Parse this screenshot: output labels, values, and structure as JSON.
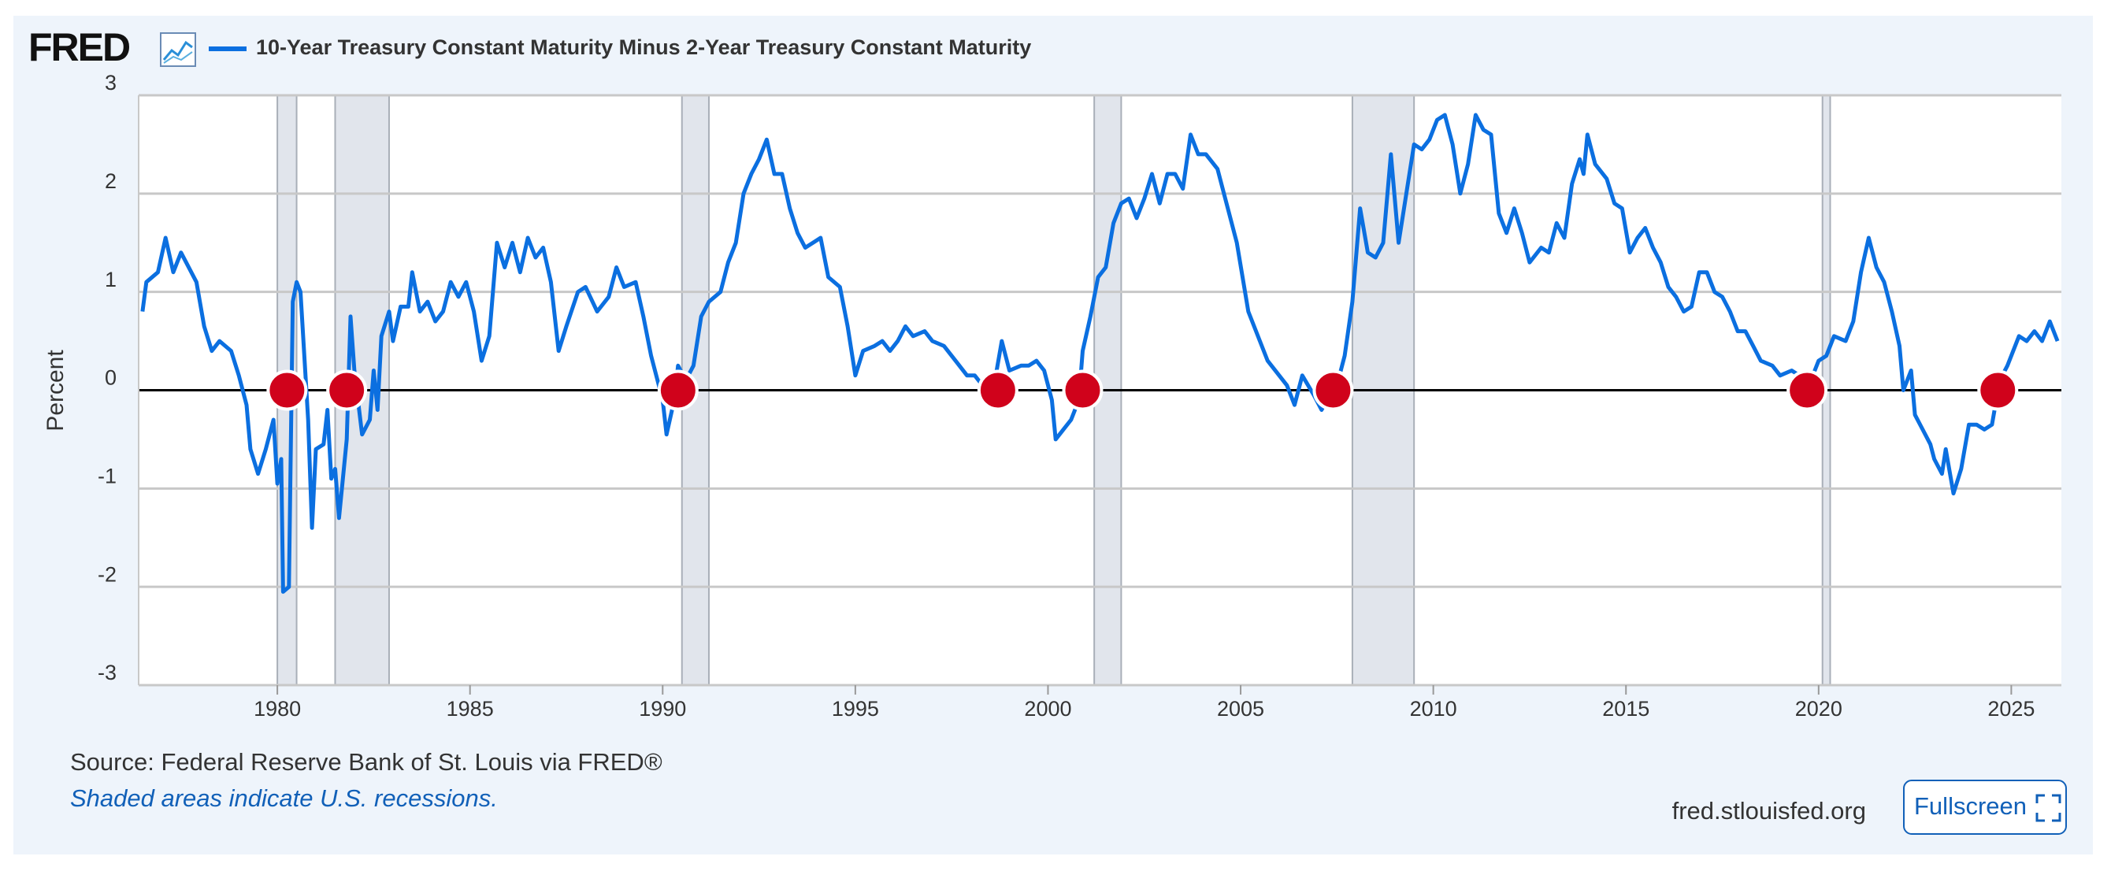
{
  "header": {
    "logo": "FRED"
  },
  "chart_data": {
    "type": "line",
    "title": "10-Year Treasury Constant Maturity Minus 2-Year Treasury Constant Maturity",
    "y_label": "Percent",
    "xlim": [
      1976.4,
      2026.3
    ],
    "ylim": [
      -3,
      3
    ],
    "xticks": [
      1980,
      1985,
      1990,
      1995,
      2000,
      2005,
      2010,
      2015,
      2020,
      2025
    ],
    "yticks": [
      -3,
      -2,
      -1,
      0,
      1,
      2,
      3
    ],
    "grid": true,
    "recessions": [
      [
        1980.0,
        1980.5
      ],
      [
        1981.5,
        1982.9
      ],
      [
        1990.5,
        1991.2
      ],
      [
        2001.2,
        2001.9
      ],
      [
        2007.9,
        2009.5
      ],
      [
        2020.1,
        2020.3
      ]
    ],
    "markers": {
      "x": [
        1980.25,
        1981.8,
        1990.4,
        1998.7,
        2000.9,
        2007.4,
        2019.7,
        2024.65
      ],
      "y": [
        0,
        0,
        0,
        0,
        0,
        0,
        0,
        0
      ],
      "color": "#d0021b"
    },
    "x": [
      1976.5,
      1976.6,
      1976.9,
      1977.1,
      1977.3,
      1977.5,
      1977.9,
      1978.1,
      1978.3,
      1978.5,
      1978.8,
      1979.0,
      1979.2,
      1979.3,
      1979.5,
      1979.7,
      1979.9,
      1980.0,
      1980.1,
      1980.15,
      1980.3,
      1980.4,
      1980.5,
      1980.6,
      1980.8,
      1980.9,
      1981.0,
      1981.2,
      1981.3,
      1981.4,
      1981.5,
      1981.6,
      1981.8,
      1981.9,
      1982.0,
      1982.2,
      1982.4,
      1982.5,
      1982.6,
      1982.7,
      1982.9,
      1983.0,
      1983.2,
      1983.4,
      1983.5,
      1983.7,
      1983.9,
      1984.1,
      1984.3,
      1984.5,
      1984.7,
      1984.9,
      1985.1,
      1985.3,
      1985.5,
      1985.7,
      1985.9,
      1986.1,
      1986.3,
      1986.5,
      1986.7,
      1986.9,
      1987.1,
      1987.3,
      1987.5,
      1987.8,
      1988.0,
      1988.3,
      1988.6,
      1988.8,
      1989.0,
      1989.3,
      1989.5,
      1989.7,
      1990.0,
      1990.1,
      1990.3,
      1990.4,
      1990.6,
      1990.8,
      1991.0,
      1991.2,
      1991.5,
      1991.7,
      1991.9,
      1992.1,
      1992.3,
      1992.5,
      1992.7,
      1992.9,
      1993.1,
      1993.3,
      1993.5,
      1993.7,
      1993.9,
      1994.1,
      1994.3,
      1994.6,
      1994.8,
      1995.0,
      1995.2,
      1995.5,
      1995.7,
      1995.9,
      1996.1,
      1996.3,
      1996.5,
      1996.8,
      1997.0,
      1997.3,
      1997.6,
      1997.9,
      1998.1,
      1998.3,
      1998.6,
      1998.8,
      1999.0,
      1999.3,
      1999.5,
      1999.7,
      1999.9,
      2000.1,
      2000.2,
      2000.4,
      2000.6,
      2000.8,
      2000.9,
      2001.1,
      2001.3,
      2001.5,
      2001.7,
      2001.9,
      2002.1,
      2002.3,
      2002.5,
      2002.7,
      2002.9,
      2003.1,
      2003.3,
      2003.5,
      2003.7,
      2003.9,
      2004.1,
      2004.4,
      2004.6,
      2004.9,
      2005.2,
      2005.5,
      2005.7,
      2006.0,
      2006.2,
      2006.4,
      2006.6,
      2006.9,
      2007.1,
      2007.3,
      2007.5,
      2007.7,
      2007.9,
      2008.1,
      2008.3,
      2008.5,
      2008.7,
      2008.9,
      2009.1,
      2009.3,
      2009.5,
      2009.7,
      2009.9,
      2010.1,
      2010.3,
      2010.5,
      2010.7,
      2010.9,
      2011.1,
      2011.3,
      2011.5,
      2011.7,
      2011.9,
      2012.1,
      2012.3,
      2012.5,
      2012.8,
      2013.0,
      2013.2,
      2013.4,
      2013.6,
      2013.8,
      2013.9,
      2014.0,
      2014.2,
      2014.5,
      2014.7,
      2014.9,
      2015.1,
      2015.3,
      2015.5,
      2015.7,
      2015.9,
      2016.1,
      2016.3,
      2016.5,
      2016.7,
      2016.9,
      2017.1,
      2017.3,
      2017.5,
      2017.7,
      2017.9,
      2018.1,
      2018.3,
      2018.5,
      2018.8,
      2019.0,
      2019.3,
      2019.5,
      2019.7,
      2019.9,
      2020.0,
      2020.2,
      2020.4,
      2020.7,
      2020.9,
      2021.1,
      2021.3,
      2021.5,
      2021.7,
      2021.9,
      2022.1,
      2022.2,
      2022.4,
      2022.5,
      2022.7,
      2022.9,
      2023.0,
      2023.2,
      2023.3,
      2023.5,
      2023.7,
      2023.9,
      2024.1,
      2024.3,
      2024.5,
      2024.7,
      2024.9,
      2025.0,
      2025.2,
      2025.4,
      2025.6,
      2025.8,
      2026.0,
      2026.2
    ],
    "series": [
      {
        "name": "10-Year Treasury Constant Maturity Minus 2-Year Treasury Constant Maturity",
        "color": "#0b6fe0",
        "values": [
          0.8,
          1.1,
          1.2,
          1.55,
          1.2,
          1.4,
          1.1,
          0.65,
          0.4,
          0.5,
          0.4,
          0.15,
          -0.15,
          -0.6,
          -0.85,
          -0.6,
          -0.3,
          -0.95,
          -0.7,
          -2.05,
          -2.0,
          0.9,
          1.1,
          1.0,
          -0.3,
          -1.4,
          -0.6,
          -0.55,
          -0.2,
          -0.9,
          -0.8,
          -1.3,
          -0.5,
          0.75,
          0.2,
          -0.45,
          -0.3,
          0.2,
          -0.2,
          0.55,
          0.8,
          0.5,
          0.85,
          0.85,
          1.2,
          0.8,
          0.9,
          0.7,
          0.8,
          1.1,
          0.95,
          1.1,
          0.8,
          0.3,
          0.55,
          1.5,
          1.25,
          1.5,
          1.2,
          1.55,
          1.35,
          1.45,
          1.1,
          0.4,
          0.65,
          1.0,
          1.05,
          0.8,
          0.95,
          1.25,
          1.05,
          1.1,
          0.75,
          0.35,
          -0.1,
          -0.45,
          -0.1,
          0.25,
          0.1,
          0.25,
          0.75,
          0.9,
          1.0,
          1.3,
          1.5,
          2.0,
          2.2,
          2.35,
          2.55,
          2.2,
          2.2,
          1.85,
          1.6,
          1.45,
          1.5,
          1.55,
          1.15,
          1.05,
          0.65,
          0.15,
          0.4,
          0.45,
          0.5,
          0.4,
          0.5,
          0.65,
          0.55,
          0.6,
          0.5,
          0.45,
          0.3,
          0.15,
          0.15,
          0.05,
          0.05,
          0.5,
          0.2,
          0.25,
          0.25,
          0.3,
          0.2,
          -0.1,
          -0.5,
          -0.4,
          -0.3,
          -0.1,
          0.4,
          0.75,
          1.15,
          1.25,
          1.7,
          1.9,
          1.95,
          1.75,
          1.95,
          2.2,
          1.9,
          2.2,
          2.2,
          2.05,
          2.6,
          2.4,
          2.4,
          2.25,
          1.95,
          1.5,
          0.8,
          0.5,
          0.3,
          0.15,
          0.05,
          -0.15,
          0.15,
          -0.05,
          -0.2,
          -0.05,
          0.05,
          0.35,
          0.9,
          1.85,
          1.4,
          1.35,
          1.5,
          2.4,
          1.5,
          2.0,
          2.5,
          2.45,
          2.55,
          2.75,
          2.8,
          2.5,
          2.0,
          2.3,
          2.8,
          2.65,
          2.6,
          1.8,
          1.6,
          1.85,
          1.6,
          1.3,
          1.45,
          1.4,
          1.7,
          1.55,
          2.1,
          2.35,
          2.2,
          2.6,
          2.3,
          2.15,
          1.9,
          1.85,
          1.4,
          1.55,
          1.65,
          1.45,
          1.3,
          1.05,
          0.95,
          0.8,
          0.85,
          1.2,
          1.2,
          1.0,
          0.95,
          0.8,
          0.6,
          0.6,
          0.45,
          0.3,
          0.25,
          0.15,
          0.2,
          0.15,
          0.0,
          0.2,
          0.3,
          0.35,
          0.55,
          0.5,
          0.7,
          1.2,
          1.55,
          1.25,
          1.1,
          0.8,
          0.45,
          0.0,
          0.2,
          -0.25,
          -0.4,
          -0.55,
          -0.7,
          -0.85,
          -0.6,
          -1.05,
          -0.8,
          -0.35,
          -0.35,
          -0.4,
          -0.35,
          0.1,
          0.25,
          0.35,
          0.55,
          0.5,
          0.6,
          0.5,
          0.7,
          0.5
        ]
      }
    ]
  },
  "footer": {
    "source": "Source: Federal Reserve Bank of St. Louis via FRED®",
    "note": "Shaded areas indicate U.S. recessions.",
    "site": "fred.stlouisfed.org",
    "button": "Fullscreen"
  }
}
